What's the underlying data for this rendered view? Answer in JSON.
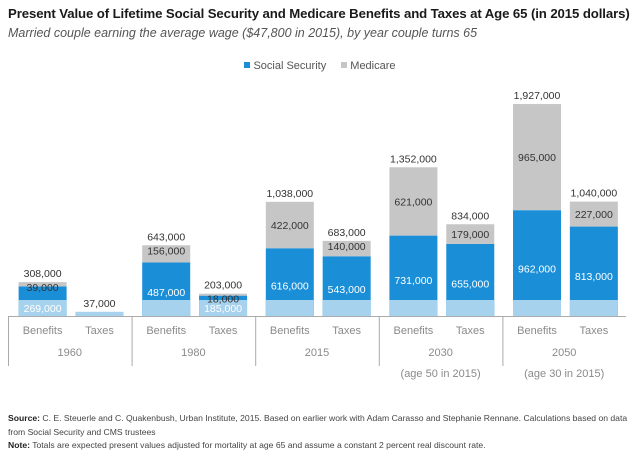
{
  "colors": {
    "social_security": "#1a8fd8",
    "social_security_light": "#a7d2ee",
    "medicare": "#c6c6c6",
    "axis": "#aaaaaa",
    "label_dark": "#333333",
    "label_light": "#ffffff"
  },
  "legend": {
    "social_security": "Social Security",
    "medicare": "Medicare"
  },
  "footer": {
    "source_label": "Source:",
    "source_text": " C. E. Steuerle and C. Quakenbush, Urban Institute, 2015. Based on earlier work with Adam Carasso and Stephanie Rennane. Calculations based on data from Social Security and CMS trustees",
    "note_label": "Note:",
    "note_text": " Totals are expected present values adjusted for mortality at age 65 and assume a constant 2 percent real discount rate."
  },
  "chart_data": {
    "type": "bar",
    "stacked": true,
    "title": "Present Value of Lifetime Social Security and Medicare Benefits and Taxes at Age 65 (in 2015 dollars)",
    "subtitle": "Married couple earning the average wage ($47,800 in 2015), by year couple turns 65",
    "xlabel": "",
    "ylabel": "",
    "ylim": [
      0,
      2000000
    ],
    "grid": false,
    "legend_position": "top-center",
    "groups": [
      {
        "label": "1960",
        "sublabel": "",
        "categories": [
          "Benefits",
          "Taxes"
        ]
      },
      {
        "label": "1980",
        "sublabel": "",
        "categories": [
          "Benefits",
          "Taxes"
        ]
      },
      {
        "label": "2015",
        "sublabel": "",
        "categories": [
          "Benefits",
          "Taxes"
        ]
      },
      {
        "label": "2030",
        "sublabel": "(age 50 in 2015)",
        "categories": [
          "Benefits",
          "Taxes"
        ]
      },
      {
        "label": "2050",
        "sublabel": "(age 30 in 2015)",
        "categories": [
          "Benefits",
          "Taxes"
        ]
      }
    ],
    "bars": [
      {
        "group": "1960",
        "category": "Benefits",
        "social_security": 269000,
        "medicare": 39000,
        "total": 308000,
        "ss_label": "269,000",
        "med_label": "39,000",
        "total_label": "308,000"
      },
      {
        "group": "1960",
        "category": "Taxes",
        "social_security": 37000,
        "medicare": 0,
        "total": 37000,
        "ss_label": "",
        "med_label": "",
        "total_label": "37,000"
      },
      {
        "group": "1980",
        "category": "Benefits",
        "social_security": 487000,
        "medicare": 156000,
        "total": 643000,
        "ss_label": "487,000",
        "med_label": "156,000",
        "total_label": "643,000"
      },
      {
        "group": "1980",
        "category": "Taxes",
        "social_security": 185000,
        "medicare": 18000,
        "total": 203000,
        "ss_label": "185,000",
        "med_label": "18,000",
        "total_label": "203,000"
      },
      {
        "group": "2015",
        "category": "Benefits",
        "social_security": 616000,
        "medicare": 422000,
        "total": 1038000,
        "ss_label": "616,000",
        "med_label": "422,000",
        "total_label": "1,038,000"
      },
      {
        "group": "2015",
        "category": "Taxes",
        "social_security": 543000,
        "medicare": 140000,
        "total": 683000,
        "ss_label": "543,000",
        "med_label": "140,000",
        "total_label": "683,000"
      },
      {
        "group": "2030",
        "category": "Benefits",
        "social_security": 731000,
        "medicare": 621000,
        "total": 1352000,
        "ss_label": "731,000",
        "med_label": "621,000",
        "total_label": "1,352,000"
      },
      {
        "group": "2030",
        "category": "Taxes",
        "social_security": 655000,
        "medicare": 179000,
        "total": 834000,
        "ss_label": "655,000",
        "med_label": "179,000",
        "total_label": "834,000"
      },
      {
        "group": "2050",
        "category": "Benefits",
        "social_security": 962000,
        "medicare": 965000,
        "total": 1927000,
        "ss_label": "962,000",
        "med_label": "965,000",
        "total_label": "1,927,000"
      },
      {
        "group": "2050",
        "category": "Taxes",
        "social_security": 813000,
        "medicare": 227000,
        "total": 1040000,
        "ss_label": "813,000",
        "med_label": "227,000",
        "total_label": "1,040,000"
      }
    ]
  }
}
